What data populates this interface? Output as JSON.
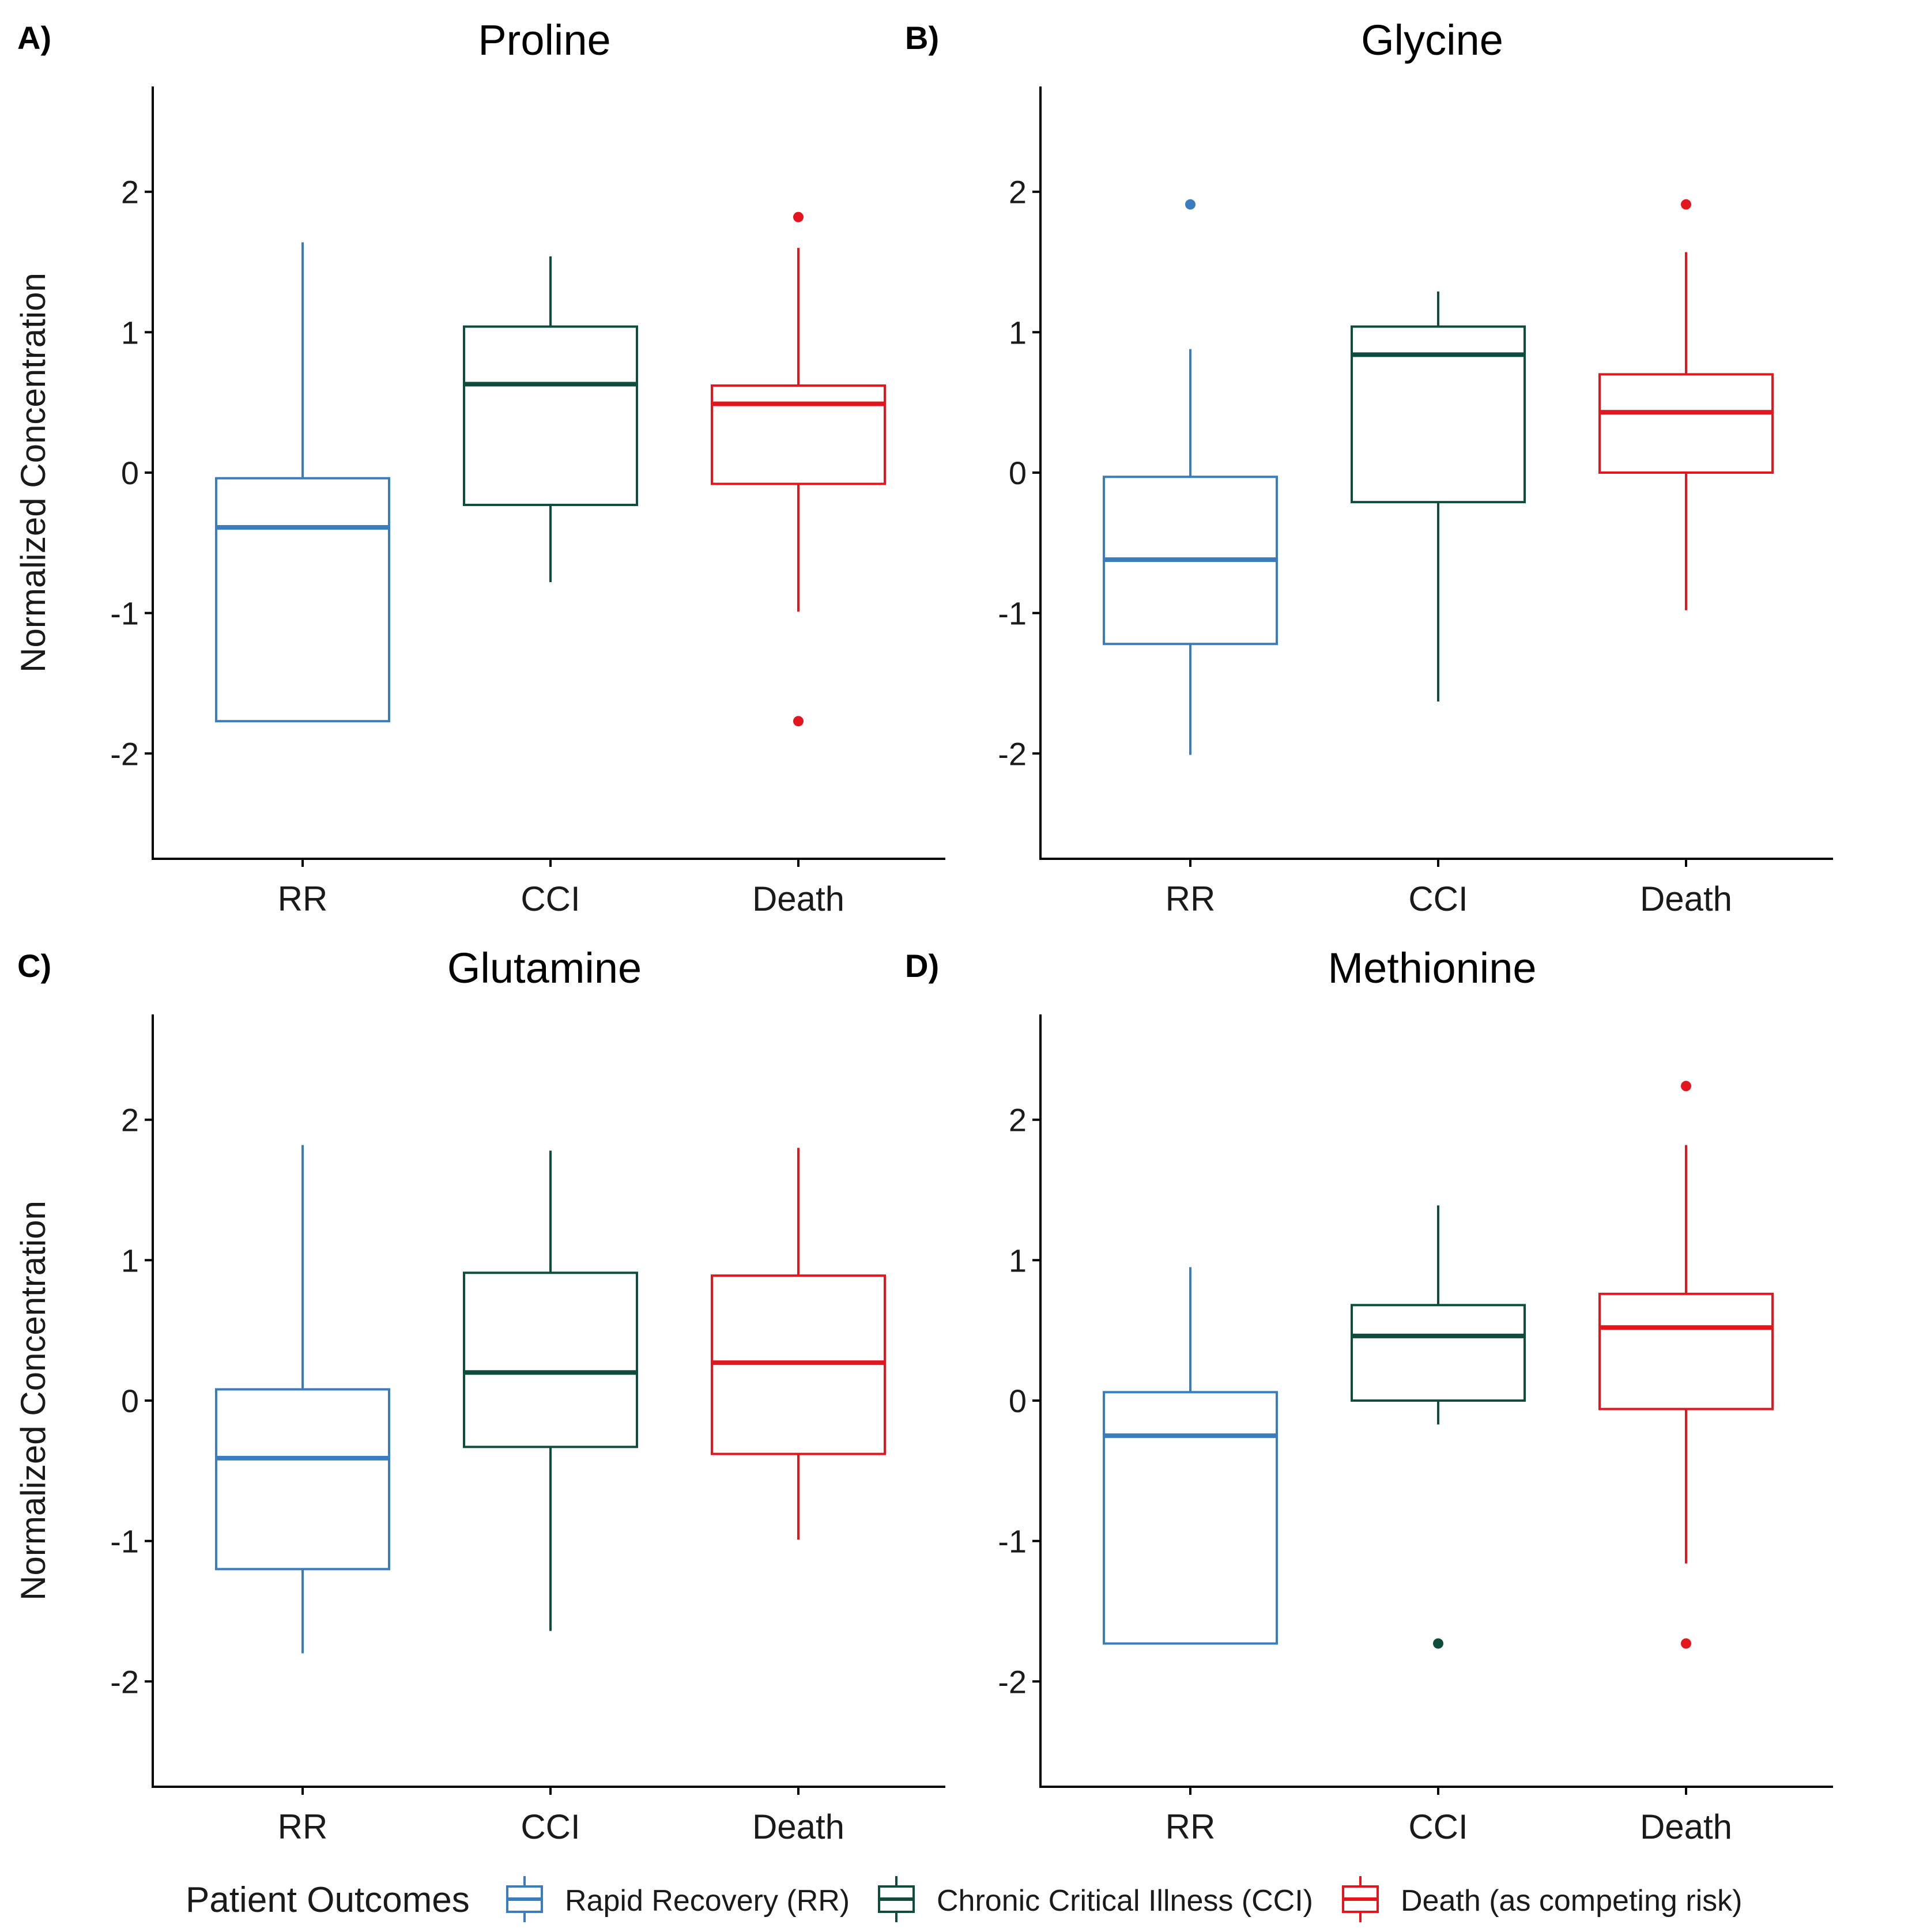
{
  "colors": {
    "RR": "#3A7DBF",
    "CCI": "#0E4D3E",
    "Death": "#E3161E",
    "axis": "#000000"
  },
  "y_axis_label": "Normalized Concentration",
  "legend": {
    "title": "Patient Outcomes",
    "entries": [
      {
        "key": "RR",
        "label": "Rapid Recovery (RR)"
      },
      {
        "key": "CCI",
        "label": "Chronic Critical Illness (CCI)"
      },
      {
        "key": "Death",
        "label": "Death (as competing risk)"
      }
    ]
  },
  "chart_data": [
    {
      "type": "boxplot",
      "panel_label": "A)",
      "title": "Proline",
      "ylabel": "Normalized Concentration",
      "xlabel": "",
      "ylim": [
        -2.75,
        2.75
      ],
      "yticks": [
        -2,
        -1,
        0,
        1,
        2
      ],
      "categories": [
        "RR",
        "CCI",
        "Death"
      ],
      "boxes": [
        {
          "group": "RR",
          "whisker_low": -1.77,
          "q1": -1.77,
          "median": -0.39,
          "q3": -0.04,
          "whisker_high": 1.64,
          "outliers": []
        },
        {
          "group": "CCI",
          "whisker_low": -0.78,
          "q1": -0.23,
          "median": 0.63,
          "q3": 1.04,
          "whisker_high": 1.54,
          "outliers": []
        },
        {
          "group": "Death",
          "whisker_low": -0.99,
          "q1": -0.08,
          "median": 0.49,
          "q3": 0.62,
          "whisker_high": 1.6,
          "outliers": [
            1.82,
            -1.77
          ]
        }
      ]
    },
    {
      "type": "boxplot",
      "panel_label": "B)",
      "title": "Glycine",
      "ylabel": "",
      "xlabel": "",
      "ylim": [
        -2.75,
        2.75
      ],
      "yticks": [
        -2,
        -1,
        0,
        1,
        2
      ],
      "categories": [
        "RR",
        "CCI",
        "Death"
      ],
      "boxes": [
        {
          "group": "RR",
          "whisker_low": -2.01,
          "q1": -1.22,
          "median": -0.62,
          "q3": -0.03,
          "whisker_high": 0.88,
          "outliers": [
            1.91
          ]
        },
        {
          "group": "CCI",
          "whisker_low": -1.63,
          "q1": -0.21,
          "median": 0.84,
          "q3": 1.04,
          "whisker_high": 1.29,
          "outliers": []
        },
        {
          "group": "Death",
          "whisker_low": -0.98,
          "q1": 0.0,
          "median": 0.43,
          "q3": 0.7,
          "whisker_high": 1.57,
          "outliers": [
            1.91
          ]
        }
      ]
    },
    {
      "type": "boxplot",
      "panel_label": "C)",
      "title": "Glutamine",
      "ylabel": "Normalized Concentration",
      "xlabel": "",
      "ylim": [
        -2.75,
        2.75
      ],
      "yticks": [
        -2,
        -1,
        0,
        1,
        2
      ],
      "categories": [
        "RR",
        "CCI",
        "Death"
      ],
      "boxes": [
        {
          "group": "RR",
          "whisker_low": -1.8,
          "q1": -1.2,
          "median": -0.41,
          "q3": 0.08,
          "whisker_high": 1.82,
          "outliers": []
        },
        {
          "group": "CCI",
          "whisker_low": -1.64,
          "q1": -0.33,
          "median": 0.2,
          "q3": 0.91,
          "whisker_high": 1.78,
          "outliers": []
        },
        {
          "group": "Death",
          "whisker_low": -0.99,
          "q1": -0.38,
          "median": 0.27,
          "q3": 0.89,
          "whisker_high": 1.8,
          "outliers": []
        }
      ]
    },
    {
      "type": "boxplot",
      "panel_label": "D)",
      "title": "Methionine",
      "ylabel": "",
      "xlabel": "",
      "ylim": [
        -2.75,
        2.75
      ],
      "yticks": [
        -2,
        -1,
        0,
        1,
        2
      ],
      "categories": [
        "RR",
        "CCI",
        "Death"
      ],
      "boxes": [
        {
          "group": "RR",
          "whisker_low": -1.73,
          "q1": -1.73,
          "median": -0.25,
          "q3": 0.06,
          "whisker_high": 0.95,
          "outliers": []
        },
        {
          "group": "CCI",
          "whisker_low": -0.17,
          "q1": 0.0,
          "median": 0.46,
          "q3": 0.68,
          "whisker_high": 1.39,
          "outliers": [
            -1.73
          ]
        },
        {
          "group": "Death",
          "whisker_low": -1.16,
          "q1": -0.06,
          "median": 0.52,
          "q3": 0.76,
          "whisker_high": 1.82,
          "outliers": [
            2.24,
            -1.73
          ]
        }
      ]
    }
  ]
}
